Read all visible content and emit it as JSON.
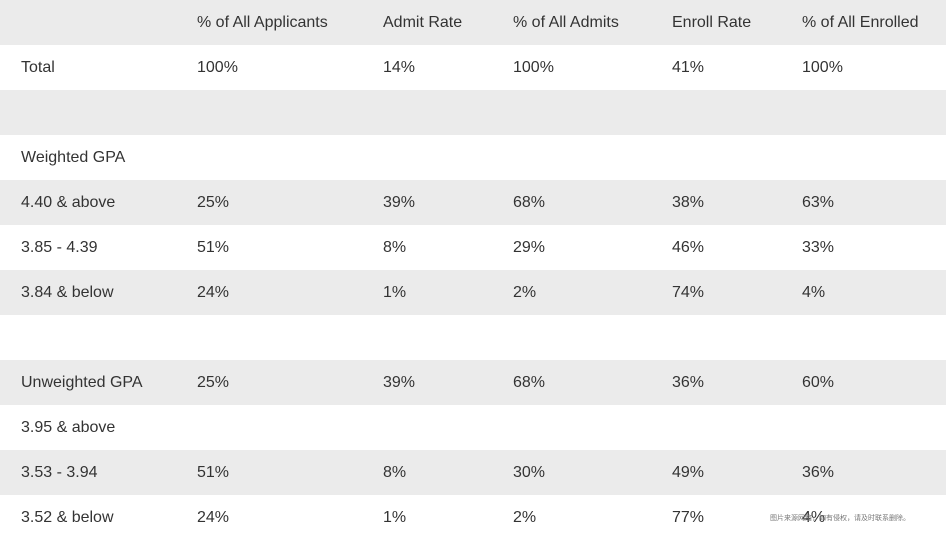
{
  "table": {
    "headers": [
      "",
      "% of All Applicants",
      "Admit Rate",
      "% of All Admits",
      "Enroll Rate",
      "% of All Enrolled"
    ],
    "rows": [
      [
        "Total",
        "100%",
        "14%",
        "100%",
        "41%",
        "100%"
      ],
      [
        "",
        "",
        "",
        "",
        "",
        ""
      ],
      [
        "Weighted GPA",
        "",
        "",
        "",
        "",
        ""
      ],
      [
        "4.40 & above",
        "25%",
        "39%",
        "68%",
        "38%",
        "63%"
      ],
      [
        "3.85 - 4.39",
        "51%",
        "8%",
        "29%",
        "46%",
        "33%"
      ],
      [
        "3.84 & below",
        "24%",
        "1%",
        "2%",
        "74%",
        "4%"
      ],
      [
        "",
        "",
        "",
        "",
        "",
        ""
      ],
      [
        "Unweighted GPA",
        "25%",
        "39%",
        "68%",
        "36%",
        "60%"
      ],
      [
        "3.95 & above",
        "",
        "",
        "",
        "",
        ""
      ],
      [
        "3.53 - 3.94",
        "51%",
        "8%",
        "30%",
        "49%",
        "36%"
      ],
      [
        "3.52 & below",
        "24%",
        "1%",
        "2%",
        "77%",
        "4%"
      ]
    ]
  },
  "watermark": "图片来源网络，如有侵权，请及时联系删除。"
}
